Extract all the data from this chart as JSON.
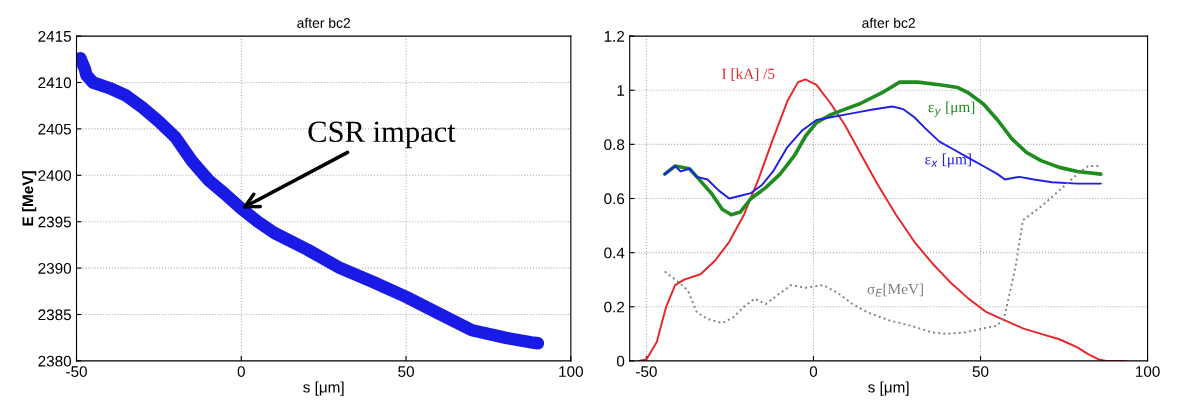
{
  "chart_data": [
    {
      "type": "line",
      "title": "after bc2",
      "xlabel": "s [μm]",
      "ylabel": "E [MeV]",
      "xlim": [
        -50,
        100
      ],
      "ylim": [
        2380,
        2415
      ],
      "xticks": [
        -50,
        0,
        50,
        100
      ],
      "yticks": [
        2380,
        2385,
        2390,
        2395,
        2400,
        2405,
        2410,
        2415
      ],
      "grid": true,
      "series": [
        {
          "color": "#1a1ae6",
          "x": [
            -48.8,
            -47.5,
            -47,
            -45,
            -40,
            -35,
            -30,
            -25,
            -20,
            -14.9,
            -10,
            -5,
            0,
            5,
            10,
            20,
            30,
            40,
            50,
            60,
            70,
            80,
            88,
            90
          ],
          "values": [
            2412.6,
            2411.5,
            2410.8,
            2410,
            2409.4,
            2408.6,
            2407.3,
            2405.8,
            2404.1,
            2401.5,
            2399.5,
            2398,
            2396.4,
            2395,
            2393.8,
            2392,
            2390,
            2388.5,
            2386.9,
            2385.1,
            2383.3,
            2382.5,
            2382,
            2381.9
          ]
        }
      ],
      "annotations": [
        {
          "text": "CSR impact",
          "x": 0,
          "y": 2396.4
        }
      ]
    },
    {
      "type": "line",
      "title": "after bc2",
      "xlabel": "s [μm]",
      "xlim": [
        -55,
        100
      ],
      "ylim": [
        0,
        1.2
      ],
      "xticks": [
        -50,
        0,
        50,
        100
      ],
      "yticks": [
        0,
        0.2,
        0.4,
        0.6,
        0.8,
        1,
        1.2
      ],
      "grid": true,
      "series": [
        {
          "name": "I [kA] /5",
          "color": "#e8262a",
          "x": [
            -52.3,
            -50,
            -46.9,
            -44.1,
            -41.4,
            -38.7,
            -33.8,
            -29.5,
            -25.2,
            -20.8,
            -16.5,
            -12.1,
            -7.8,
            -4.6,
            -2.4,
            0.9,
            5.2,
            9.5,
            13.9,
            19.3,
            24.7,
            30.2,
            35.6,
            41,
            46.4,
            51.8,
            57.3,
            62.7,
            68.1,
            73.6,
            79,
            82.2,
            85.5,
            87.6,
            93.6
          ],
          "values": [
            0,
            0.005,
            0.07,
            0.2,
            0.28,
            0.3,
            0.32,
            0.37,
            0.44,
            0.54,
            0.67,
            0.82,
            0.96,
            1.03,
            1.04,
            1.02,
            0.95,
            0.87,
            0.77,
            0.65,
            0.54,
            0.44,
            0.36,
            0.29,
            0.23,
            0.18,
            0.15,
            0.12,
            0.1,
            0.08,
            0.05,
            0.025,
            0.005,
            0,
            0
          ]
        },
        {
          "name": "ε$_{y}$ [μm]",
          "color": "#1e8c1e",
          "x": [
            -44.5,
            -41.4,
            -37.1,
            -34.9,
            -30.6,
            -27.3,
            -24.6,
            -21.9,
            -18.7,
            -14.3,
            -10,
            -5.6,
            -2.4,
            0.9,
            5.2,
            9.5,
            13.9,
            20.4,
            25.8,
            31.2,
            37.7,
            43.2,
            46.4,
            50.8,
            55.1,
            59.4,
            63.8,
            68.1,
            73.6,
            79,
            86
          ],
          "values": [
            0.69,
            0.72,
            0.71,
            0.68,
            0.62,
            0.56,
            0.54,
            0.55,
            0.6,
            0.64,
            0.69,
            0.76,
            0.83,
            0.88,
            0.91,
            0.93,
            0.95,
            0.99,
            1.03,
            1.03,
            1.02,
            1.01,
            0.99,
            0.95,
            0.89,
            0.82,
            0.77,
            0.74,
            0.715,
            0.7,
            0.69
          ]
        },
        {
          "name": "ε$_{x}$ [μm]",
          "color": "#1f1fe6",
          "x": [
            -44.5,
            -41.4,
            -39.8,
            -37.1,
            -34.9,
            -31.7,
            -28.4,
            -25.2,
            -21.9,
            -18.7,
            -15.4,
            -12.1,
            -7.8,
            -3.5,
            0.9,
            5.2,
            9.5,
            13.9,
            18.2,
            23.6,
            26.9,
            30.2,
            33.4,
            37.7,
            42.1,
            46.4,
            50.8,
            55.1,
            57.3,
            61.6,
            66,
            71.4,
            79,
            86
          ],
          "values": [
            0.69,
            0.72,
            0.7,
            0.71,
            0.68,
            0.67,
            0.63,
            0.6,
            0.61,
            0.62,
            0.65,
            0.7,
            0.79,
            0.85,
            0.89,
            0.9,
            0.91,
            0.92,
            0.93,
            0.94,
            0.93,
            0.9,
            0.86,
            0.81,
            0.78,
            0.75,
            0.72,
            0.69,
            0.67,
            0.68,
            0.67,
            0.66,
            0.655,
            0.655
          ]
        },
        {
          "name": "σ$_{E}$[MeV]",
          "color": "#808080",
          "line_style": "dotted",
          "x": [
            -44.5,
            -40.3,
            -37.6,
            -34.9,
            -31.7,
            -27.3,
            -24.1,
            -20.8,
            -17.6,
            -14.3,
            -10,
            -6.7,
            -2.4,
            3,
            7.4,
            11.7,
            16.1,
            22.6,
            29.1,
            35.6,
            39.9,
            45.3,
            50.8,
            55.1,
            57.3,
            60.5,
            62.7,
            68.1,
            73.6,
            79,
            82.2,
            86
          ],
          "values": [
            0.33,
            0.29,
            0.26,
            0.18,
            0.155,
            0.14,
            0.16,
            0.2,
            0.23,
            0.21,
            0.25,
            0.28,
            0.27,
            0.28,
            0.25,
            0.21,
            0.18,
            0.15,
            0.13,
            0.105,
            0.1,
            0.105,
            0.12,
            0.13,
            0.17,
            0.35,
            0.52,
            0.57,
            0.63,
            0.69,
            0.72,
            0.72
          ]
        }
      ]
    }
  ]
}
